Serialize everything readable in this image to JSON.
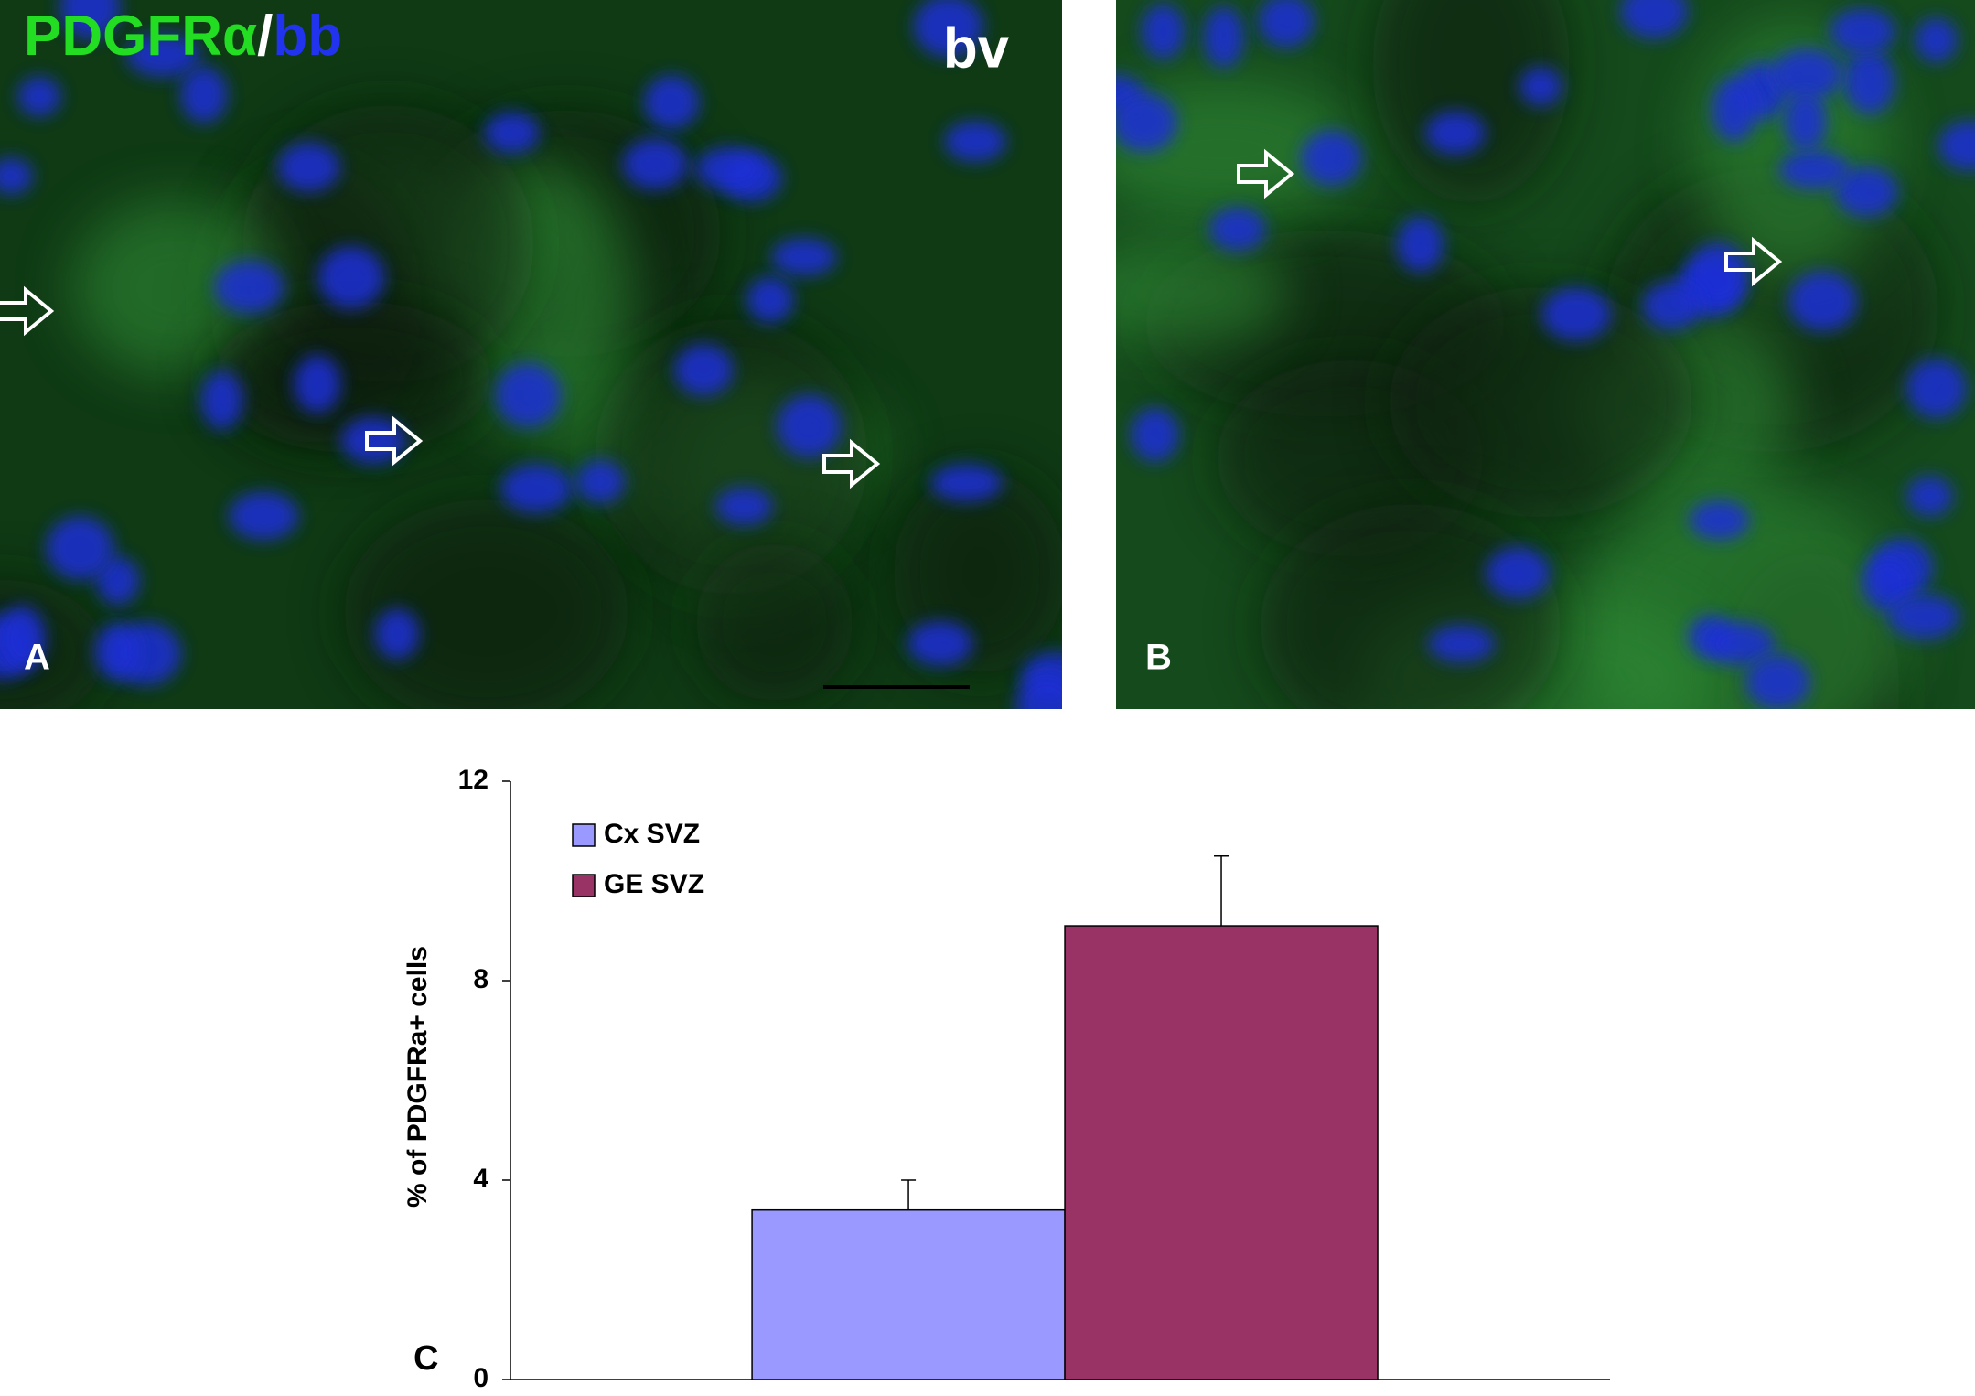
{
  "panels": [
    {
      "label": "A",
      "stain": [
        "PDGFRα",
        "/",
        "bb"
      ],
      "annotation": "bv"
    },
    {
      "label": "B"
    }
  ],
  "chart_data": {
    "type": "bar",
    "panel_label": "C",
    "y_label": "% of PDGFRa+ cells",
    "categories": [
      null
    ],
    "series": [
      {
        "name": "Cx SVZ",
        "color": "#9999ff",
        "values": [
          3.4
        ],
        "errors": [
          0.6
        ]
      },
      {
        "name": "GE SVZ",
        "color": "#993366",
        "values": [
          9.1
        ],
        "errors": [
          1.4
        ]
      }
    ],
    "ylim": [
      0,
      12
    ],
    "yticks": [
      0,
      4,
      8,
      12
    ],
    "legend": "upper left"
  }
}
